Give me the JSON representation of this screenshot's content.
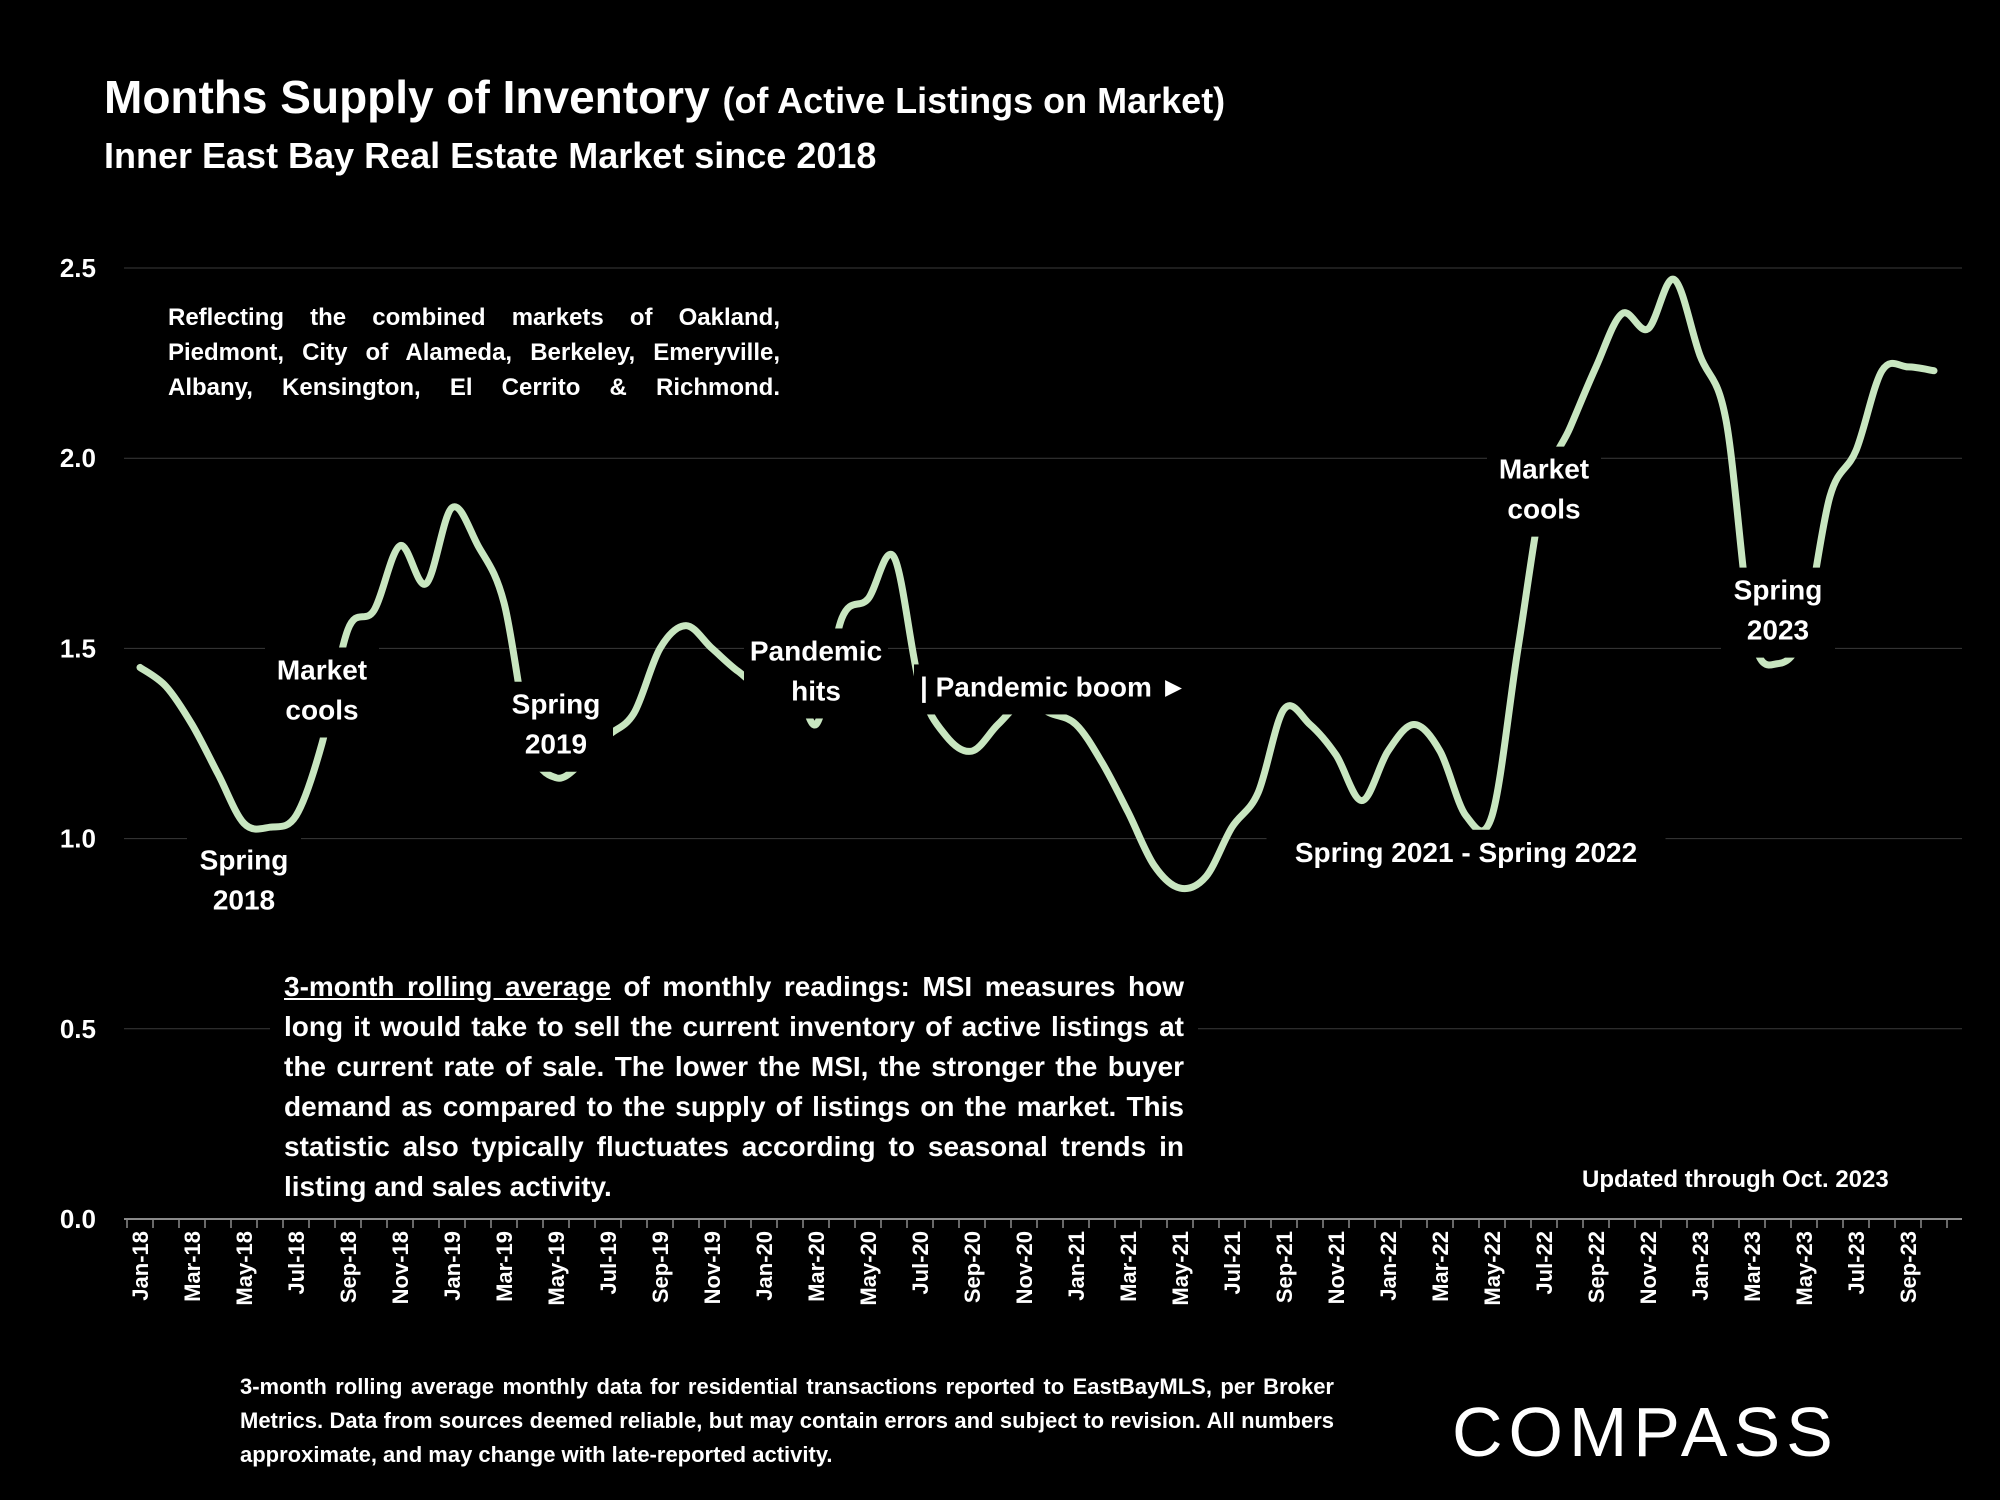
{
  "header": {
    "title": "Months Supply of Inventory",
    "title_suffix": "(of Active Listings on Market)",
    "subtitle": "Inner East Bay Real Estate Market since 2018"
  },
  "notes": {
    "markets": "Reflecting the combined markets of Oakland, Piedmont, City of Alameda, Berkeley, Emeryville, Albany, Kensington, El Cerrito & Richmond.",
    "msi_underlined": "3-month rolling average",
    "msi_rest": " of monthly readings: MSI measures how long it would take to sell the current inventory of active listings at the current rate of sale. The lower the MSI, the stronger the buyer demand as compared to the supply of listings on the market. This statistic also typically fluctuates according to seasonal trends in listing and sales activity.",
    "updated": "Updated through Oct. 2023",
    "footer": "3-month rolling average monthly data for residential transactions reported to EastBayMLS, per Broker Metrics. Data from sources deemed reliable, but may contain errors and subject to revision. All numbers approximate, and may change with late-reported activity."
  },
  "brand": {
    "logo_text": "COMPASS"
  },
  "colors": {
    "background": "#000000",
    "line": "#c8e6c0",
    "text": "#ffffff",
    "grid": "#3a3a3a"
  },
  "chart_data": {
    "type": "line",
    "title": "Months Supply of Inventory (of Active Listings on Market)",
    "subtitle": "Inner East Bay Real Estate Market since 2018",
    "ylim": [
      0,
      2.5
    ],
    "yticks": [
      "0.0",
      "0.5",
      "1.0",
      "1.5",
      "2.0",
      "2.5"
    ],
    "grid": "horizontal",
    "x_tick_labels": [
      "Jan-18",
      "Mar-18",
      "May-18",
      "Jul-18",
      "Sep-18",
      "Nov-18",
      "Jan-19",
      "Mar-19",
      "May-19",
      "Jul-19",
      "Sep-19",
      "Nov-19",
      "Jan-20",
      "Mar-20",
      "May-20",
      "Jul-20",
      "Sep-20",
      "Nov-20",
      "Jan-21",
      "Mar-21",
      "May-21",
      "Jul-21",
      "Sep-21",
      "Nov-21",
      "Jan-22",
      "Mar-22",
      "May-22",
      "Jul-22",
      "Sep-22",
      "Nov-22",
      "Jan-23",
      "Mar-23",
      "May-23",
      "Jul-23",
      "Sep-23"
    ],
    "x": [
      "Jan-18",
      "Feb-18",
      "Mar-18",
      "Apr-18",
      "May-18",
      "Jun-18",
      "Jul-18",
      "Aug-18",
      "Sep-18",
      "Oct-18",
      "Nov-18",
      "Dec-18",
      "Jan-19",
      "Feb-19",
      "Mar-19",
      "Apr-19",
      "May-19",
      "Jun-19",
      "Jul-19",
      "Aug-19",
      "Sep-19",
      "Oct-19",
      "Nov-19",
      "Dec-19",
      "Jan-20",
      "Feb-20",
      "Mar-20",
      "Apr-20",
      "May-20",
      "Jun-20",
      "Jul-20",
      "Aug-20",
      "Sep-20",
      "Oct-20",
      "Nov-20",
      "Dec-20",
      "Jan-21",
      "Feb-21",
      "Mar-21",
      "Apr-21",
      "May-21",
      "Jun-21",
      "Jul-21",
      "Aug-21",
      "Sep-21",
      "Oct-21",
      "Nov-21",
      "Dec-21",
      "Jan-22",
      "Feb-22",
      "Mar-22",
      "Apr-22",
      "May-22",
      "Jun-22",
      "Jul-22",
      "Aug-22",
      "Sep-22",
      "Oct-22",
      "Nov-22",
      "Dec-22",
      "Jan-23",
      "Feb-23",
      "Mar-23",
      "Apr-23",
      "May-23",
      "Jun-23",
      "Jul-23",
      "Aug-23",
      "Sep-23",
      "Oct-23"
    ],
    "series": [
      {
        "values": [
          1.45,
          1.4,
          1.3,
          1.17,
          1.04,
          1.03,
          1.06,
          1.25,
          1.55,
          1.6,
          1.77,
          1.67,
          1.87,
          1.77,
          1.62,
          1.25,
          1.16,
          1.2,
          1.27,
          1.33,
          1.5,
          1.56,
          1.5,
          1.44,
          1.4,
          1.47,
          1.3,
          1.58,
          1.63,
          1.74,
          1.4,
          1.27,
          1.23,
          1.3,
          1.36,
          1.33,
          1.3,
          1.2,
          1.07,
          0.93,
          0.87,
          0.9,
          1.03,
          1.12,
          1.34,
          1.3,
          1.22,
          1.1,
          1.23,
          1.3,
          1.23,
          1.06,
          1.06,
          1.5,
          1.92,
          2.08,
          2.24,
          2.38,
          2.34,
          2.47,
          2.27,
          2.1,
          1.54,
          1.46,
          1.55,
          1.9,
          2.02,
          2.23,
          2.24,
          2.23
        ]
      }
    ],
    "annotations": [
      {
        "x": "May-18",
        "dy": 1,
        "lines": [
          "Spring",
          "2018"
        ]
      },
      {
        "x": "Aug-18",
        "dy": -1,
        "lines": [
          "Market",
          "cools"
        ]
      },
      {
        "x": "May-19",
        "dy": -1,
        "lines": [
          "Spring",
          "2019"
        ]
      },
      {
        "x": "Mar-20",
        "dy": -1,
        "lines": [
          "Pandemic",
          "hits"
        ]
      },
      {
        "x": "Jul-20",
        "dy": 0,
        "lines": [
          "| Pandemic boom ►"
        ]
      },
      {
        "x": "Apr-22",
        "dy": 1,
        "lines": [
          "Spring 2021 - Spring 2022"
        ]
      },
      {
        "x": "Jul-22",
        "dy": 0,
        "lines": [
          "Market",
          "cools"
        ]
      },
      {
        "x": "Apr-23",
        "dy": -1,
        "lines": [
          "Spring",
          "2023"
        ]
      }
    ]
  }
}
